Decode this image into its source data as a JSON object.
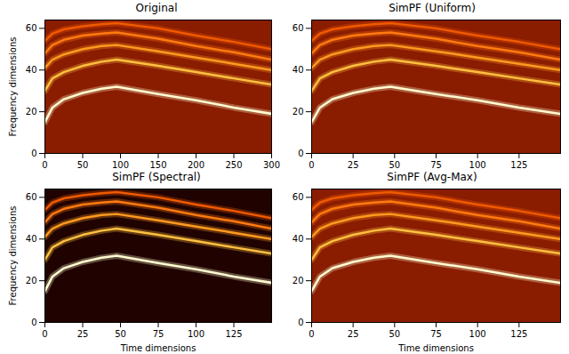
{
  "chart_data": [
    {
      "type": "line",
      "title": "Original",
      "y_label": "Frequency dimensions",
      "x": [
        0,
        10,
        25,
        50,
        75,
        95,
        150,
        200,
        250,
        300
      ],
      "xlim": [
        0,
        300
      ],
      "xticks": [
        0,
        50,
        100,
        150,
        200,
        250,
        300
      ],
      "ylim": [
        0,
        64
      ],
      "yticks": [
        0,
        20,
        40,
        60
      ],
      "series": [
        {
          "color": "#f05a00",
          "values": [
            54,
            57.5,
            59.5,
            61,
            62,
            62.5,
            60,
            56.5,
            53.5,
            50
          ]
        },
        {
          "color": "#ff7a10",
          "values": [
            48,
            52,
            54.5,
            56.5,
            57.5,
            58,
            55,
            51.5,
            48.5,
            45
          ]
        },
        {
          "color": "#ff9a20",
          "values": [
            41,
            45,
            47.5,
            50,
            51.5,
            52,
            49,
            46,
            43,
            40
          ]
        },
        {
          "color": "#ffc040",
          "values": [
            30,
            36,
            39,
            42,
            44,
            45,
            42,
            39,
            36,
            33
          ]
        },
        {
          "color": "#fffbd0",
          "values": [
            15,
            22,
            26,
            29,
            31,
            32,
            28.5,
            25.5,
            22,
            19
          ]
        }
      ]
    },
    {
      "type": "line",
      "title": "SimPF (Uniform)",
      "x": [
        0,
        5,
        12.5,
        25,
        37.5,
        47.5,
        75,
        100,
        125,
        150
      ],
      "xlim": [
        0,
        150
      ],
      "xticks": [
        0,
        25,
        50,
        75,
        100,
        125
      ],
      "ylim": [
        0,
        64
      ],
      "yticks": [
        0,
        20,
        40,
        60
      ],
      "series": [
        {
          "color": "#f05a00",
          "values": [
            54,
            57.5,
            59.5,
            61,
            62,
            62.5,
            60,
            56.5,
            53.5,
            50
          ]
        },
        {
          "color": "#ff7a10",
          "values": [
            48,
            52,
            54.5,
            56.5,
            57.5,
            58,
            55,
            51.5,
            48.5,
            45
          ]
        },
        {
          "color": "#ff9a20",
          "values": [
            41,
            45,
            47.5,
            50,
            51.5,
            52,
            49,
            46,
            43,
            40
          ]
        },
        {
          "color": "#ffc040",
          "values": [
            30,
            36,
            39,
            42,
            44,
            45,
            42,
            39,
            36,
            33
          ]
        },
        {
          "color": "#fffbd0",
          "values": [
            15,
            22,
            26,
            29,
            31,
            32,
            28.5,
            25.5,
            22,
            19
          ]
        }
      ]
    },
    {
      "type": "line",
      "title": "SimPF (Spectral)",
      "x_label": "Time dimensions",
      "y_label": "Frequency dimensions",
      "x": [
        0,
        5,
        12.5,
        25,
        37.5,
        47.5,
        75,
        100,
        125,
        150
      ],
      "xlim": [
        0,
        150
      ],
      "xticks": [
        0,
        25,
        50,
        75,
        100,
        125
      ],
      "ylim": [
        0,
        64
      ],
      "yticks": [
        0,
        20,
        40,
        60
      ],
      "series": [
        {
          "color": "#f05a00",
          "values": [
            54,
            57.5,
            59.5,
            61,
            62,
            62.5,
            60,
            56.5,
            53.5,
            50
          ]
        },
        {
          "color": "#ff7a10",
          "values": [
            48,
            52,
            54.5,
            56.5,
            57.5,
            58,
            55,
            51.5,
            48.5,
            45
          ]
        },
        {
          "color": "#ff9a20",
          "values": [
            41,
            45,
            47.5,
            50,
            51.5,
            52,
            49,
            46,
            43,
            40
          ]
        },
        {
          "color": "#ffc040",
          "values": [
            30,
            36,
            39,
            42,
            44,
            45,
            42,
            39,
            36,
            33
          ]
        },
        {
          "color": "#fffbd0",
          "values": [
            15,
            22,
            26,
            29,
            31,
            32,
            28.5,
            25.5,
            22,
            19
          ]
        }
      ]
    },
    {
      "type": "line",
      "title": "SimPF (Avg-Max)",
      "x_label": "Time dimensions",
      "x": [
        0,
        5,
        12.5,
        25,
        37.5,
        47.5,
        75,
        100,
        125,
        150
      ],
      "xlim": [
        0,
        150
      ],
      "xticks": [
        0,
        25,
        50,
        75,
        100,
        125
      ],
      "ylim": [
        0,
        64
      ],
      "yticks": [
        0,
        20,
        40,
        60
      ],
      "series": [
        {
          "color": "#f05a00",
          "values": [
            54,
            57.5,
            59.5,
            61,
            62,
            62.5,
            60,
            56.5,
            53.5,
            50
          ]
        },
        {
          "color": "#ff7a10",
          "values": [
            48,
            52,
            54.5,
            56.5,
            57.5,
            58,
            55,
            51.5,
            48.5,
            45
          ]
        },
        {
          "color": "#ff9a20",
          "values": [
            41,
            45,
            47.5,
            50,
            51.5,
            52,
            49,
            46,
            43,
            40
          ]
        },
        {
          "color": "#ffc040",
          "values": [
            30,
            36,
            39,
            42,
            44,
            45,
            42,
            39,
            36,
            33
          ]
        },
        {
          "color": "#fffbd0",
          "values": [
            15,
            22,
            26,
            29,
            31,
            32,
            28.5,
            25.5,
            22,
            19
          ]
        }
      ]
    }
  ]
}
